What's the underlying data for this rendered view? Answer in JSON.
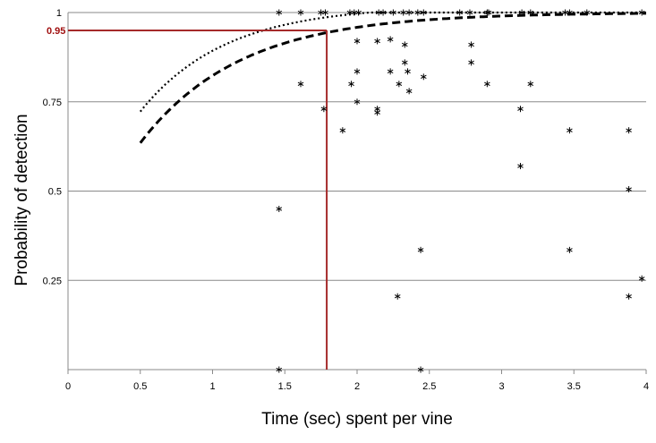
{
  "chart_data": {
    "type": "scatter",
    "title": "",
    "xlabel": "Time (sec) spent per vine",
    "ylabel": "Probability of detection",
    "xlim": [
      0,
      4
    ],
    "ylim": [
      0,
      1
    ],
    "x_ticks": [
      "0",
      "0.5",
      "1",
      "1.5",
      "2",
      "2.5",
      "3",
      "3.5",
      "4"
    ],
    "y_ticks": [
      "0.25",
      "0.5",
      "0.75",
      "1"
    ],
    "grid": "horizontal",
    "reference": {
      "x": 1.79,
      "y": 0.95,
      "label": "0.95",
      "color": "#a52a2a"
    },
    "points": [
      [
        1.46,
        1
      ],
      [
        1.61,
        1
      ],
      [
        1.75,
        1
      ],
      [
        1.78,
        1
      ],
      [
        1.95,
        1
      ],
      [
        1.98,
        1
      ],
      [
        2.01,
        1
      ],
      [
        2.15,
        1
      ],
      [
        2.18,
        1
      ],
      [
        2.25,
        1
      ],
      [
        2.32,
        1
      ],
      [
        2.36,
        1
      ],
      [
        2.42,
        1
      ],
      [
        2.46,
        1
      ],
      [
        2.71,
        1
      ],
      [
        2.78,
        1
      ],
      [
        2.9,
        1
      ],
      [
        2.91,
        1
      ],
      [
        3.14,
        1
      ],
      [
        3.2,
        1
      ],
      [
        3.44,
        1
      ],
      [
        3.47,
        1
      ],
      [
        3.59,
        1
      ],
      [
        3.97,
        1
      ],
      [
        2.0,
        0.92
      ],
      [
        2.14,
        0.92
      ],
      [
        2.23,
        0.925
      ],
      [
        2.33,
        0.91
      ],
      [
        2.79,
        0.91
      ],
      [
        2.79,
        0.86
      ],
      [
        2.33,
        0.86
      ],
      [
        2.35,
        0.835
      ],
      [
        2.23,
        0.835
      ],
      [
        2.0,
        0.835
      ],
      [
        2.46,
        0.82
      ],
      [
        2.29,
        0.8
      ],
      [
        1.61,
        0.8
      ],
      [
        1.96,
        0.8
      ],
      [
        2.9,
        0.8
      ],
      [
        3.2,
        0.8
      ],
      [
        2.36,
        0.78
      ],
      [
        2.0,
        0.75
      ],
      [
        1.77,
        0.73
      ],
      [
        2.14,
        0.73
      ],
      [
        2.14,
        0.72
      ],
      [
        3.13,
        0.73
      ],
      [
        1.9,
        0.67
      ],
      [
        3.47,
        0.67
      ],
      [
        3.88,
        0.67
      ],
      [
        3.13,
        0.57
      ],
      [
        3.88,
        0.505
      ],
      [
        1.46,
        0.45
      ],
      [
        2.44,
        0.335
      ],
      [
        3.47,
        0.335
      ],
      [
        3.97,
        0.255
      ],
      [
        2.28,
        0.205
      ],
      [
        3.88,
        0.205
      ],
      [
        1.46,
        0
      ],
      [
        2.44,
        0
      ]
    ],
    "series": [
      {
        "style": "dotted",
        "curve": {
          "a": 1.02,
          "b": 1.7,
          "c": 0.225
        }
      },
      {
        "style": "dashed",
        "curve": {
          "a": 1.0,
          "b": 1.45,
          "c": 0.195
        }
      }
    ],
    "curve_x_range": [
      0.5,
      4
    ]
  }
}
